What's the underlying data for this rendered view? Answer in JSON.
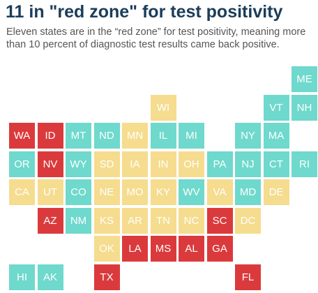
{
  "header": {
    "title": "11 in \"red zone\" for test positivity",
    "subtitle": "Eleven states are in the “red zone” for test positivity, meaning more than 10 percent of diagnostic test results came back positive."
  },
  "colors": {
    "red": "#db3a3d",
    "yellow": "#f5dc8e",
    "teal": "#6ed9cc",
    "text": "#ffffff"
  },
  "map": {
    "type": "tile-grid",
    "cols": 11,
    "rows": 8,
    "states": [
      {
        "abbr": "ME",
        "row": 0,
        "col": 10,
        "zone": "teal"
      },
      {
        "abbr": "WI",
        "row": 1,
        "col": 5,
        "zone": "yellow"
      },
      {
        "abbr": "VT",
        "row": 1,
        "col": 9,
        "zone": "teal"
      },
      {
        "abbr": "NH",
        "row": 1,
        "col": 10,
        "zone": "teal"
      },
      {
        "abbr": "WA",
        "row": 2,
        "col": 0,
        "zone": "red"
      },
      {
        "abbr": "ID",
        "row": 2,
        "col": 1,
        "zone": "red"
      },
      {
        "abbr": "MT",
        "row": 2,
        "col": 2,
        "zone": "teal"
      },
      {
        "abbr": "ND",
        "row": 2,
        "col": 3,
        "zone": "teal"
      },
      {
        "abbr": "MN",
        "row": 2,
        "col": 4,
        "zone": "yellow"
      },
      {
        "abbr": "IL",
        "row": 2,
        "col": 5,
        "zone": "teal"
      },
      {
        "abbr": "MI",
        "row": 2,
        "col": 6,
        "zone": "teal"
      },
      {
        "abbr": "NY",
        "row": 2,
        "col": 8,
        "zone": "teal"
      },
      {
        "abbr": "MA",
        "row": 2,
        "col": 9,
        "zone": "teal"
      },
      {
        "abbr": "OR",
        "row": 3,
        "col": 0,
        "zone": "teal"
      },
      {
        "abbr": "NV",
        "row": 3,
        "col": 1,
        "zone": "red"
      },
      {
        "abbr": "WY",
        "row": 3,
        "col": 2,
        "zone": "teal"
      },
      {
        "abbr": "SD",
        "row": 3,
        "col": 3,
        "zone": "yellow"
      },
      {
        "abbr": "IA",
        "row": 3,
        "col": 4,
        "zone": "yellow"
      },
      {
        "abbr": "IN",
        "row": 3,
        "col": 5,
        "zone": "yellow"
      },
      {
        "abbr": "OH",
        "row": 3,
        "col": 6,
        "zone": "yellow"
      },
      {
        "abbr": "PA",
        "row": 3,
        "col": 7,
        "zone": "teal"
      },
      {
        "abbr": "NJ",
        "row": 3,
        "col": 8,
        "zone": "teal"
      },
      {
        "abbr": "CT",
        "row": 3,
        "col": 9,
        "zone": "teal"
      },
      {
        "abbr": "RI",
        "row": 3,
        "col": 10,
        "zone": "teal"
      },
      {
        "abbr": "CA",
        "row": 4,
        "col": 0,
        "zone": "yellow"
      },
      {
        "abbr": "UT",
        "row": 4,
        "col": 1,
        "zone": "yellow"
      },
      {
        "abbr": "CO",
        "row": 4,
        "col": 2,
        "zone": "teal"
      },
      {
        "abbr": "NE",
        "row": 4,
        "col": 3,
        "zone": "yellow"
      },
      {
        "abbr": "MO",
        "row": 4,
        "col": 4,
        "zone": "yellow"
      },
      {
        "abbr": "KY",
        "row": 4,
        "col": 5,
        "zone": "yellow"
      },
      {
        "abbr": "WV",
        "row": 4,
        "col": 6,
        "zone": "teal"
      },
      {
        "abbr": "VA",
        "row": 4,
        "col": 7,
        "zone": "yellow"
      },
      {
        "abbr": "MD",
        "row": 4,
        "col": 8,
        "zone": "teal"
      },
      {
        "abbr": "DE",
        "row": 4,
        "col": 9,
        "zone": "yellow"
      },
      {
        "abbr": "AZ",
        "row": 5,
        "col": 1,
        "zone": "red"
      },
      {
        "abbr": "NM",
        "row": 5,
        "col": 2,
        "zone": "teal"
      },
      {
        "abbr": "KS",
        "row": 5,
        "col": 3,
        "zone": "yellow"
      },
      {
        "abbr": "AR",
        "row": 5,
        "col": 4,
        "zone": "yellow"
      },
      {
        "abbr": "TN",
        "row": 5,
        "col": 5,
        "zone": "yellow"
      },
      {
        "abbr": "NC",
        "row": 5,
        "col": 6,
        "zone": "yellow"
      },
      {
        "abbr": "SC",
        "row": 5,
        "col": 7,
        "zone": "red"
      },
      {
        "abbr": "DC",
        "row": 5,
        "col": 8,
        "zone": "yellow"
      },
      {
        "abbr": "OK",
        "row": 6,
        "col": 3,
        "zone": "yellow"
      },
      {
        "abbr": "LA",
        "row": 6,
        "col": 4,
        "zone": "red"
      },
      {
        "abbr": "MS",
        "row": 6,
        "col": 5,
        "zone": "red"
      },
      {
        "abbr": "AL",
        "row": 6,
        "col": 6,
        "zone": "red"
      },
      {
        "abbr": "GA",
        "row": 6,
        "col": 7,
        "zone": "red"
      },
      {
        "abbr": "HI",
        "row": 7,
        "col": 0,
        "zone": "teal"
      },
      {
        "abbr": "AK",
        "row": 7,
        "col": 1,
        "zone": "teal"
      },
      {
        "abbr": "TX",
        "row": 7,
        "col": 3,
        "zone": "red"
      },
      {
        "abbr": "FL",
        "row": 7,
        "col": 8,
        "zone": "red"
      }
    ]
  }
}
